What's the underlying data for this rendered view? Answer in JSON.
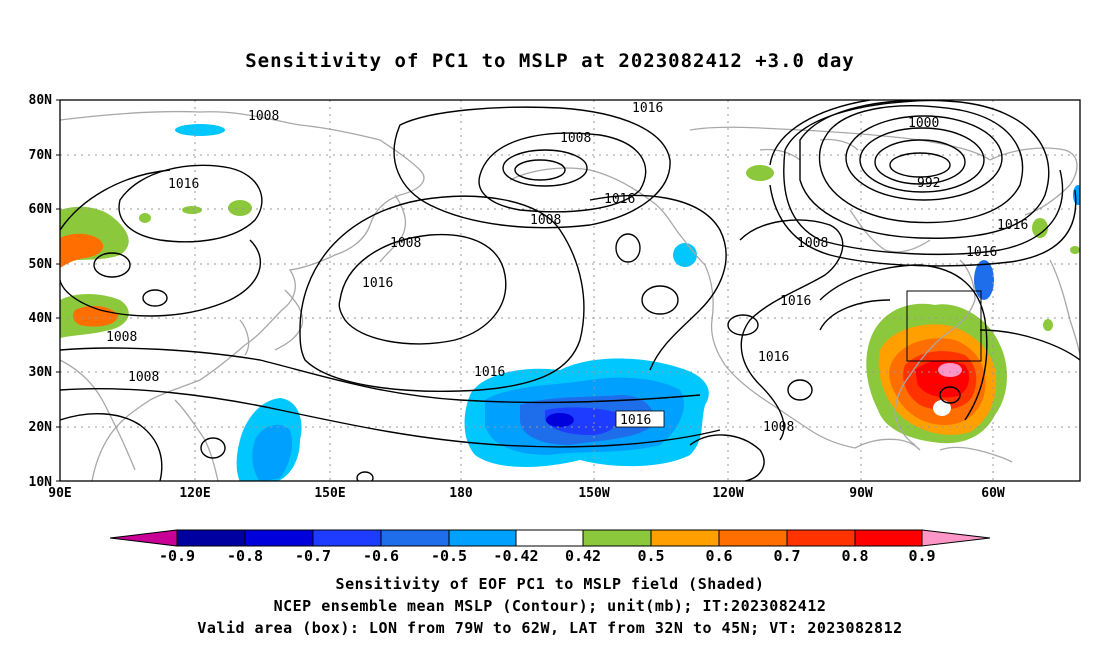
{
  "title": "Sensitivity of PC1 to MSLP at 2023082412 +3.0 day",
  "lat_labels": [
    "80N",
    "70N",
    "60N",
    "50N",
    "40N",
    "30N",
    "20N",
    "10N"
  ],
  "lon_labels": [
    "90E",
    "120E",
    "150E",
    "180",
    "150W",
    "120W",
    "90W",
    "60W"
  ],
  "contour_labels": {
    "c1": "1008",
    "c2": "1016",
    "c3": "1008",
    "c4": "1000",
    "c5": "992",
    "c6": "1016",
    "c7": "1008",
    "c8": "1016",
    "c9": "1008",
    "c10": "1016",
    "c11": "1016",
    "c12": "1016",
    "c13": "1008",
    "c14": "1008",
    "c15": "1016",
    "c16": "1016",
    "c17": "1016",
    "c18": "1008",
    "c19": "1016"
  },
  "colorbar": {
    "labels": [
      "-0.9",
      "-0.8",
      "-0.7",
      "-0.6",
      "-0.5",
      "-0.42",
      "0.42",
      "0.5",
      "0.6",
      "0.7",
      "0.8",
      "0.9"
    ],
    "colors": {
      "lt_m09": "#c80096",
      "b1": "#0000a0",
      "b2": "#0000dc",
      "b3": "#1e3cff",
      "b4": "#1e6eeb",
      "b5": "#00a0ff",
      "b6": "#00c8ff",
      "w": "#ffffff",
      "r1": "#8cc83c",
      "r2": "#ffa000",
      "r3": "#ff6e00",
      "r4": "#ff3200",
      "r5": "#ff0000",
      "gt_09": "#ff96c8"
    }
  },
  "captions": {
    "line1": "Sensitivity of EOF PC1 to MSLP field (Shaded)",
    "line2": "NCEP ensemble mean MSLP (Contour); unit(mb); IT:2023082412",
    "line3": "Valid area (box): LON from 79W to 62W, LAT from 32N to 45N; VT: 2023082812"
  },
  "valid_box": {
    "lon_from": "79W",
    "lon_to": "62W",
    "lat_from": "32N",
    "lat_to": "45N"
  }
}
